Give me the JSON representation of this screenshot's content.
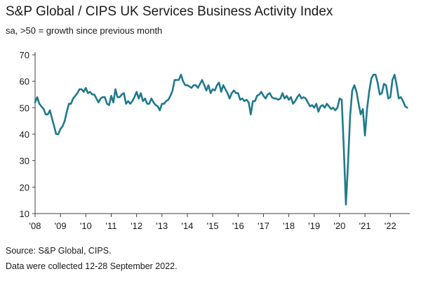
{
  "header": {
    "title": "S&P Global / CIPS UK Services Business Activity Index",
    "subtitle": "sa, >50 = growth since previous month"
  },
  "footer": {
    "source": "Source: S&P Global, CIPS.",
    "note": "Data were collected 12-28 September 2022."
  },
  "colors": {
    "line": "#1f7a8c",
    "axis": "#404040"
  },
  "chart_data": {
    "type": "line",
    "title": "S&P Global / CIPS UK Services Business Activity Index",
    "subtitle": "sa, >50 = growth since previous month",
    "xlabel": "",
    "ylabel": "",
    "ylim": [
      10,
      70
    ],
    "xlim": [
      "2008-01",
      "2022-09"
    ],
    "grid": false,
    "y_ticks": [
      "10",
      "20",
      "30",
      "40",
      "50",
      "60",
      "70"
    ],
    "x_ticks": [
      {
        "year": 2008,
        "label": "'08"
      },
      {
        "year": 2009,
        "label": "'09"
      },
      {
        "year": 2010,
        "label": "'10"
      },
      {
        "year": 2011,
        "label": "'11"
      },
      {
        "year": 2012,
        "label": "'12"
      },
      {
        "year": 2013,
        "label": "'13"
      },
      {
        "year": 2014,
        "label": "'14"
      },
      {
        "year": 2015,
        "label": "'15"
      },
      {
        "year": 2016,
        "label": "'16"
      },
      {
        "year": 2017,
        "label": "'17"
      },
      {
        "year": 2018,
        "label": "'18"
      },
      {
        "year": 2019,
        "label": "'19"
      },
      {
        "year": 2020,
        "label": "'20"
      },
      {
        "year": 2021,
        "label": "'21"
      },
      {
        "year": 2022,
        "label": "'22"
      }
    ],
    "series": [
      {
        "values": [
          [
            "2008-01",
            52.0
          ],
          [
            "2008-02",
            54.0
          ],
          [
            "2008-03",
            51.5
          ],
          [
            "2008-04",
            50.5
          ],
          [
            "2008-05",
            49.5
          ],
          [
            "2008-06",
            47.5
          ],
          [
            "2008-07",
            47.5
          ],
          [
            "2008-08",
            49.0
          ],
          [
            "2008-09",
            46.0
          ],
          [
            "2008-10",
            43.0
          ],
          [
            "2008-11",
            40.0
          ],
          [
            "2008-12",
            40.0
          ],
          [
            "2009-01",
            42.0
          ],
          [
            "2009-02",
            43.0
          ],
          [
            "2009-03",
            45.0
          ],
          [
            "2009-04",
            48.5
          ],
          [
            "2009-05",
            51.5
          ],
          [
            "2009-06",
            51.5
          ],
          [
            "2009-07",
            53.5
          ],
          [
            "2009-08",
            54.5
          ],
          [
            "2009-09",
            55.5
          ],
          [
            "2009-10",
            57.0
          ],
          [
            "2009-11",
            57.0
          ],
          [
            "2009-12",
            56.0
          ],
          [
            "2010-01",
            57.5
          ],
          [
            "2010-02",
            55.5
          ],
          [
            "2010-03",
            56.0
          ],
          [
            "2010-04",
            55.0
          ],
          [
            "2010-05",
            55.0
          ],
          [
            "2010-06",
            53.5
          ],
          [
            "2010-07",
            52.0
          ],
          [
            "2010-08",
            53.5
          ],
          [
            "2010-09",
            54.0
          ],
          [
            "2010-10",
            54.0
          ],
          [
            "2010-11",
            51.5
          ],
          [
            "2010-12",
            51.0
          ],
          [
            "2011-01",
            54.5
          ],
          [
            "2011-02",
            52.0
          ],
          [
            "2011-03",
            57.0
          ],
          [
            "2011-04",
            54.0
          ],
          [
            "2011-05",
            54.0
          ],
          [
            "2011-06",
            55.0
          ],
          [
            "2011-07",
            55.5
          ],
          [
            "2011-08",
            51.5
          ],
          [
            "2011-09",
            52.5
          ],
          [
            "2011-10",
            51.5
          ],
          [
            "2011-11",
            52.5
          ],
          [
            "2011-12",
            54.0
          ],
          [
            "2012-01",
            56.0
          ],
          [
            "2012-02",
            53.5
          ],
          [
            "2012-03",
            55.5
          ],
          [
            "2012-04",
            52.5
          ],
          [
            "2012-05",
            53.5
          ],
          [
            "2012-06",
            51.5
          ],
          [
            "2012-07",
            51.5
          ],
          [
            "2012-08",
            53.5
          ],
          [
            "2012-09",
            52.0
          ],
          [
            "2012-10",
            51.0
          ],
          [
            "2012-11",
            50.5
          ],
          [
            "2012-12",
            49.0
          ],
          [
            "2013-01",
            51.5
          ],
          [
            "2013-02",
            51.5
          ],
          [
            "2013-03",
            52.5
          ],
          [
            "2013-04",
            53.0
          ],
          [
            "2013-05",
            54.5
          ],
          [
            "2013-06",
            56.5
          ],
          [
            "2013-07",
            60.5
          ],
          [
            "2013-08",
            60.5
          ],
          [
            "2013-09",
            60.5
          ],
          [
            "2013-10",
            62.5
          ],
          [
            "2013-11",
            60.0
          ],
          [
            "2013-12",
            58.5
          ],
          [
            "2014-01",
            58.5
          ],
          [
            "2014-02",
            58.0
          ],
          [
            "2014-03",
            57.5
          ],
          [
            "2014-04",
            58.5
          ],
          [
            "2014-05",
            58.5
          ],
          [
            "2014-06",
            57.5
          ],
          [
            "2014-07",
            59.0
          ],
          [
            "2014-08",
            60.5
          ],
          [
            "2014-09",
            58.5
          ],
          [
            "2014-10",
            56.5
          ],
          [
            "2014-11",
            58.5
          ],
          [
            "2014-12",
            55.5
          ],
          [
            "2015-01",
            57.0
          ],
          [
            "2015-02",
            56.5
          ],
          [
            "2015-03",
            58.5
          ],
          [
            "2015-04",
            59.5
          ],
          [
            "2015-05",
            56.0
          ],
          [
            "2015-06",
            58.5
          ],
          [
            "2015-07",
            57.0
          ],
          [
            "2015-08",
            55.5
          ],
          [
            "2015-09",
            53.5
          ],
          [
            "2015-10",
            55.5
          ],
          [
            "2015-11",
            56.5
          ],
          [
            "2015-12",
            55.5
          ],
          [
            "2016-01",
            55.5
          ],
          [
            "2016-02",
            53.0
          ],
          [
            "2016-03",
            53.5
          ],
          [
            "2016-04",
            52.5
          ],
          [
            "2016-05",
            53.0
          ],
          [
            "2016-06",
            52.0
          ],
          [
            "2016-07",
            47.5
          ],
          [
            "2016-08",
            52.5
          ],
          [
            "2016-09",
            52.5
          ],
          [
            "2016-10",
            54.5
          ],
          [
            "2016-11",
            55.0
          ],
          [
            "2016-12",
            56.0
          ],
          [
            "2017-01",
            54.5
          ],
          [
            "2017-02",
            53.5
          ],
          [
            "2017-03",
            55.0
          ],
          [
            "2017-04",
            55.5
          ],
          [
            "2017-05",
            54.0
          ],
          [
            "2017-06",
            53.5
          ],
          [
            "2017-07",
            53.5
          ],
          [
            "2017-08",
            53.0
          ],
          [
            "2017-09",
            53.5
          ],
          [
            "2017-10",
            55.5
          ],
          [
            "2017-11",
            53.5
          ],
          [
            "2017-12",
            54.5
          ],
          [
            "2018-01",
            53.0
          ],
          [
            "2018-02",
            54.0
          ],
          [
            "2018-03",
            51.5
          ],
          [
            "2018-04",
            52.5
          ],
          [
            "2018-05",
            54.0
          ],
          [
            "2018-06",
            55.0
          ],
          [
            "2018-07",
            53.5
          ],
          [
            "2018-08",
            54.0
          ],
          [
            "2018-09",
            53.5
          ],
          [
            "2018-10",
            52.0
          ],
          [
            "2018-11",
            50.5
          ],
          [
            "2018-12",
            51.0
          ],
          [
            "2019-01",
            50.0
          ],
          [
            "2019-02",
            51.5
          ],
          [
            "2019-03",
            48.5
          ],
          [
            "2019-04",
            50.5
          ],
          [
            "2019-05",
            51.0
          ],
          [
            "2019-06",
            50.0
          ],
          [
            "2019-07",
            51.5
          ],
          [
            "2019-08",
            50.5
          ],
          [
            "2019-09",
            49.5
          ],
          [
            "2019-10",
            50.0
          ],
          [
            "2019-11",
            49.0
          ],
          [
            "2019-12",
            50.0
          ],
          [
            "2020-01",
            53.5
          ],
          [
            "2020-02",
            53.0
          ],
          [
            "2020-03",
            34.5
          ],
          [
            "2020-04",
            13.4
          ],
          [
            "2020-05",
            29.0
          ],
          [
            "2020-06",
            47.0
          ],
          [
            "2020-07",
            56.5
          ],
          [
            "2020-08",
            58.5
          ],
          [
            "2020-09",
            56.0
          ],
          [
            "2020-10",
            51.5
          ],
          [
            "2020-11",
            47.5
          ],
          [
            "2020-12",
            49.5
          ],
          [
            "2021-01",
            39.5
          ],
          [
            "2021-02",
            49.5
          ],
          [
            "2021-03",
            56.0
          ],
          [
            "2021-04",
            61.0
          ],
          [
            "2021-05",
            62.5
          ],
          [
            "2021-06",
            62.5
          ],
          [
            "2021-07",
            59.5
          ],
          [
            "2021-08",
            55.0
          ],
          [
            "2021-09",
            55.5
          ],
          [
            "2021-10",
            59.0
          ],
          [
            "2021-11",
            58.5
          ],
          [
            "2021-12",
            53.5
          ],
          [
            "2022-01",
            54.0
          ],
          [
            "2022-02",
            60.5
          ],
          [
            "2022-03",
            62.5
          ],
          [
            "2022-04",
            58.5
          ],
          [
            "2022-05",
            53.5
          ],
          [
            "2022-06",
            54.0
          ],
          [
            "2022-07",
            52.5
          ],
          [
            "2022-08",
            50.5
          ],
          [
            "2022-09",
            50.0
          ]
        ]
      }
    ]
  }
}
